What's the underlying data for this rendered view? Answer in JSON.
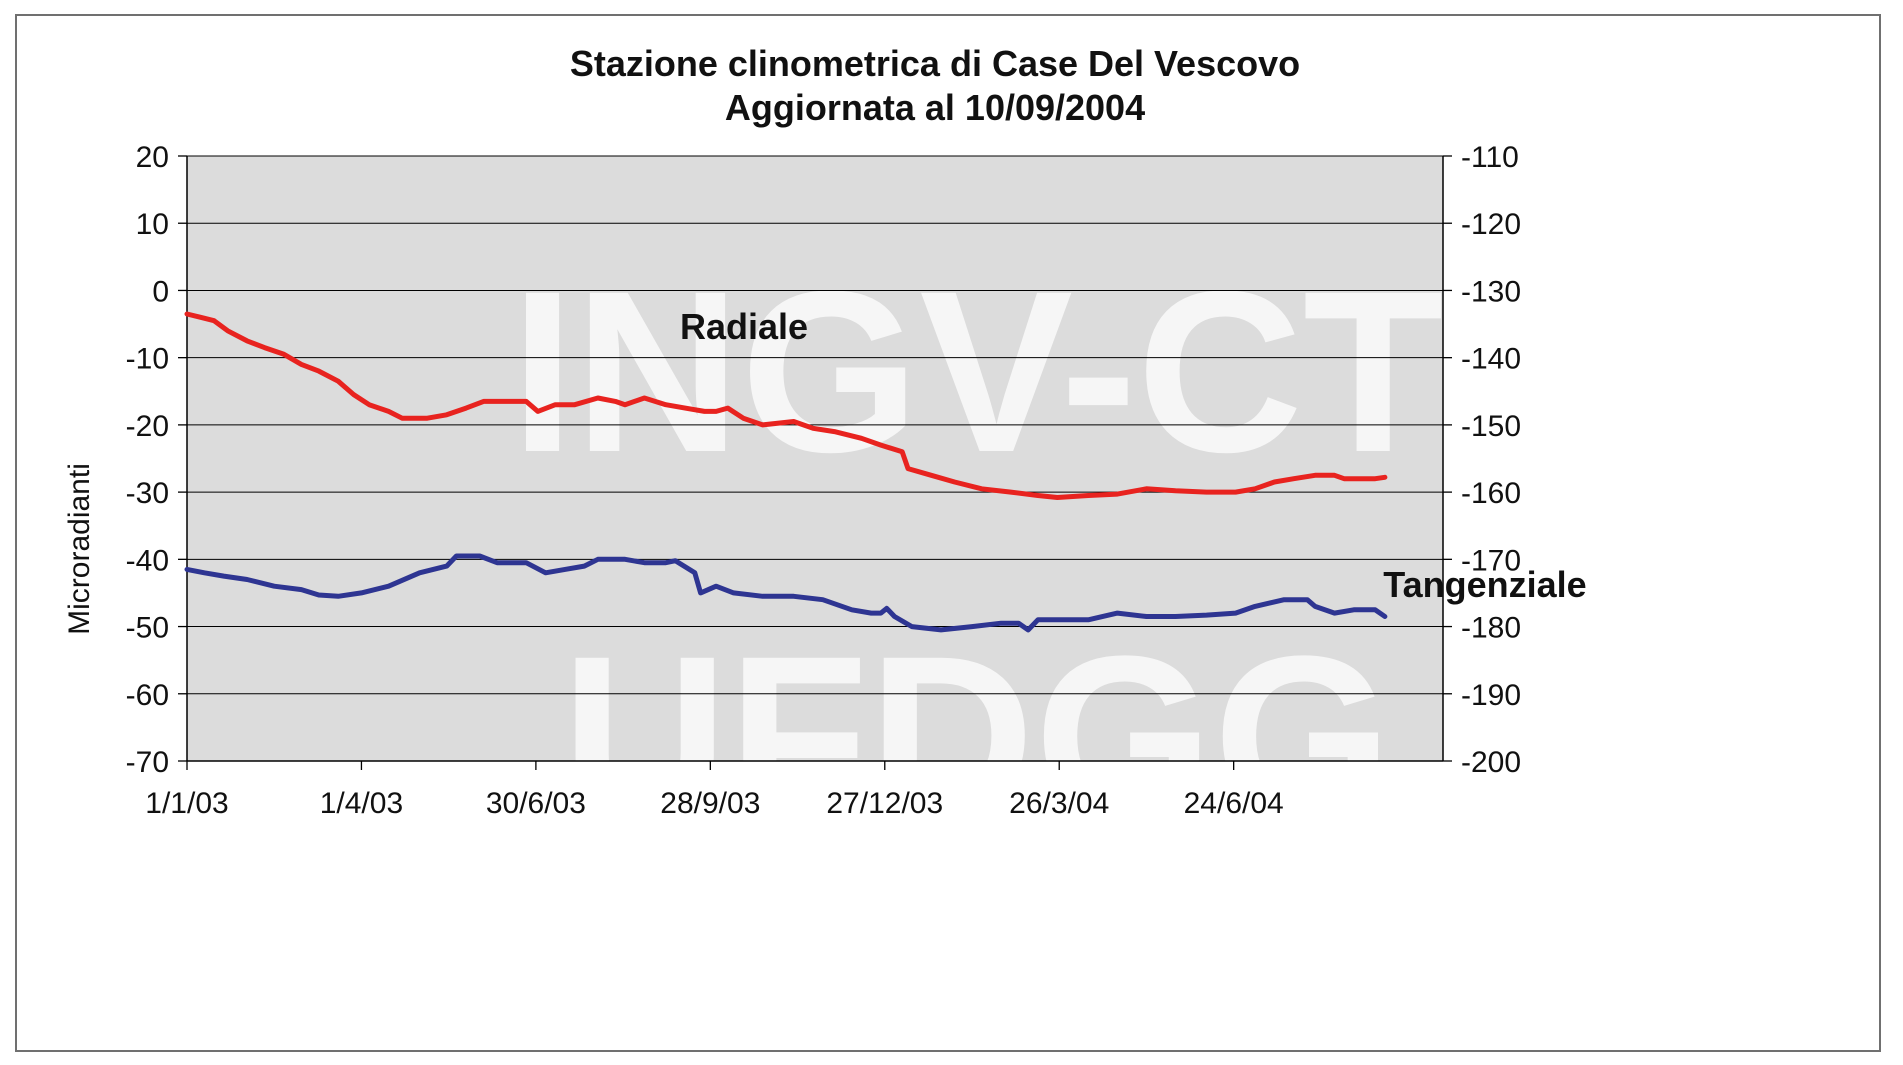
{
  "chart_data": {
    "type": "line",
    "title": "Stazione clinometrica di Case Del Vescovo",
    "subtitle": "Aggiornata al 10/09/2004",
    "ylabel": "Microradianti",
    "ylim": [
      -70,
      20
    ],
    "y_ticks": [
      "20",
      "10",
      "0",
      "-10",
      "-20",
      "-30",
      "-40",
      "-50",
      "-60",
      "-70"
    ],
    "y2lim": [
      -200,
      -110
    ],
    "y2_ticks": [
      "-110",
      "-120",
      "-130",
      "-140",
      "-150",
      "-160",
      "-170",
      "-180",
      "-190",
      "-200"
    ],
    "xlim": [
      "2003-01-01",
      "2004-09-10"
    ],
    "x_ticks": [
      {
        "date": "2003-01-01",
        "label": "1/1/03"
      },
      {
        "date": "2003-04-01",
        "label": "1/4/03"
      },
      {
        "date": "2003-06-30",
        "label": "30/6/03"
      },
      {
        "date": "2003-09-28",
        "label": "28/9/03"
      },
      {
        "date": "2003-12-27",
        "label": "27/12/03"
      },
      {
        "date": "2004-03-26",
        "label": "26/3/04"
      },
      {
        "date": "2004-06-24",
        "label": "24/6/04"
      }
    ],
    "grid": true,
    "plot_background": "#dcdcdc",
    "watermark": [
      "INGV-CT",
      "UFDGG"
    ],
    "series": [
      {
        "name": "Radiale",
        "axis": "left",
        "color": "#e8231f",
        "points": [
          [
            "2003-01-01",
            -3.5
          ],
          [
            "2003-01-08",
            -4
          ],
          [
            "2003-01-15",
            -4.5
          ],
          [
            "2003-01-22",
            -6
          ],
          [
            "2003-02-01",
            -7.5
          ],
          [
            "2003-02-10",
            -8.5
          ],
          [
            "2003-02-20",
            -9.5
          ],
          [
            "2003-03-01",
            -11
          ],
          [
            "2003-03-10",
            -12
          ],
          [
            "2003-03-20",
            -13.5
          ],
          [
            "2003-03-28",
            -15.5
          ],
          [
            "2003-04-05",
            -17
          ],
          [
            "2003-04-15",
            -18
          ],
          [
            "2003-04-22",
            -19
          ],
          [
            "2003-05-05",
            -19
          ],
          [
            "2003-05-15",
            -18.5
          ],
          [
            "2003-05-25",
            -17.5
          ],
          [
            "2003-06-03",
            -16.5
          ],
          [
            "2003-06-15",
            -16.5
          ],
          [
            "2003-06-25",
            -16.5
          ],
          [
            "2003-07-01",
            -18
          ],
          [
            "2003-07-10",
            -17
          ],
          [
            "2003-07-20",
            -17
          ],
          [
            "2003-08-01",
            -16
          ],
          [
            "2003-08-10",
            -16.5
          ],
          [
            "2003-08-15",
            -17
          ],
          [
            "2003-08-25",
            -16
          ],
          [
            "2003-09-05",
            -17
          ],
          [
            "2003-09-15",
            -17.5
          ],
          [
            "2003-09-25",
            -18
          ],
          [
            "2003-10-01",
            -18
          ],
          [
            "2003-10-07",
            -17.5
          ],
          [
            "2003-10-15",
            -19
          ],
          [
            "2003-10-25",
            -20
          ],
          [
            "2003-11-10",
            -19.5
          ],
          [
            "2003-11-20",
            -20.5
          ],
          [
            "2003-12-01",
            -21
          ],
          [
            "2003-12-15",
            -22
          ],
          [
            "2003-12-25",
            -23
          ],
          [
            "2004-01-05",
            -24
          ],
          [
            "2004-01-08",
            -26.5
          ],
          [
            "2004-01-20",
            -27.5
          ],
          [
            "2004-02-01",
            -28.5
          ],
          [
            "2004-02-15",
            -29.5
          ],
          [
            "2004-03-01",
            -30
          ],
          [
            "2004-03-15",
            -30.5
          ],
          [
            "2004-03-25",
            -30.8
          ],
          [
            "2004-04-10",
            -30.5
          ],
          [
            "2004-04-25",
            -30.3
          ],
          [
            "2004-05-10",
            -29.5
          ],
          [
            "2004-05-25",
            -29.8
          ],
          [
            "2004-06-10",
            -30
          ],
          [
            "2004-06-25",
            -30
          ],
          [
            "2004-07-05",
            -29.5
          ],
          [
            "2004-07-15",
            -28.5
          ],
          [
            "2004-07-25",
            -28
          ],
          [
            "2004-08-05",
            -27.5
          ],
          [
            "2004-08-15",
            -27.5
          ],
          [
            "2004-08-20",
            -28
          ],
          [
            "2004-08-30",
            -28
          ],
          [
            "2004-09-05",
            -28
          ],
          [
            "2004-09-10",
            -27.8
          ]
        ]
      },
      {
        "name": "Tangenziale",
        "axis": "left",
        "color": "#2e3592",
        "points": [
          [
            "2003-01-01",
            -41.5
          ],
          [
            "2003-01-10",
            -42
          ],
          [
            "2003-01-20",
            -42.5
          ],
          [
            "2003-02-01",
            -43
          ],
          [
            "2003-02-15",
            -44
          ],
          [
            "2003-03-01",
            -44.5
          ],
          [
            "2003-03-10",
            -45.3
          ],
          [
            "2003-03-20",
            -45.5
          ],
          [
            "2003-04-01",
            -45
          ],
          [
            "2003-04-15",
            -44
          ],
          [
            "2003-05-01",
            -42
          ],
          [
            "2003-05-15",
            -41
          ],
          [
            "2003-05-20",
            -39.5
          ],
          [
            "2003-06-01",
            -39.5
          ],
          [
            "2003-06-10",
            -40.5
          ],
          [
            "2003-06-25",
            -40.5
          ],
          [
            "2003-07-05",
            -42
          ],
          [
            "2003-07-15",
            -41.5
          ],
          [
            "2003-07-25",
            -41
          ],
          [
            "2003-08-01",
            -40
          ],
          [
            "2003-08-15",
            -40
          ],
          [
            "2003-08-25",
            -40.5
          ],
          [
            "2003-09-05",
            -40.5
          ],
          [
            "2003-09-10",
            -40.2
          ],
          [
            "2003-09-20",
            -42
          ],
          [
            "2003-09-23",
            -45
          ],
          [
            "2003-10-01",
            -44
          ],
          [
            "2003-10-10",
            -45
          ],
          [
            "2003-10-25",
            -45.5
          ],
          [
            "2003-11-10",
            -45.5
          ],
          [
            "2003-11-25",
            -46
          ],
          [
            "2003-12-10",
            -47.5
          ],
          [
            "2003-12-20",
            -48
          ],
          [
            "2003-12-25",
            -48
          ],
          [
            "2003-12-28",
            -47.3
          ],
          [
            "2004-01-01",
            -48.5
          ],
          [
            "2004-01-10",
            -50
          ],
          [
            "2004-01-25",
            -50.5
          ],
          [
            "2004-02-10",
            -50
          ],
          [
            "2004-02-25",
            -49.5
          ],
          [
            "2004-03-05",
            -49.5
          ],
          [
            "2004-03-10",
            -50.5
          ],
          [
            "2004-03-15",
            -49
          ],
          [
            "2004-03-25",
            -49
          ],
          [
            "2004-04-10",
            -49
          ],
          [
            "2004-04-25",
            -48
          ],
          [
            "2004-05-10",
            -48.5
          ],
          [
            "2004-05-25",
            -48.5
          ],
          [
            "2004-06-10",
            -48.3
          ],
          [
            "2004-06-25",
            -48
          ],
          [
            "2004-07-05",
            -47
          ],
          [
            "2004-07-20",
            -46
          ],
          [
            "2004-08-01",
            -46
          ],
          [
            "2004-08-05",
            -47
          ],
          [
            "2004-08-15",
            -48
          ],
          [
            "2004-08-25",
            -47.5
          ],
          [
            "2004-09-05",
            -47.5
          ],
          [
            "2004-09-10",
            -48.5
          ]
        ]
      }
    ]
  }
}
